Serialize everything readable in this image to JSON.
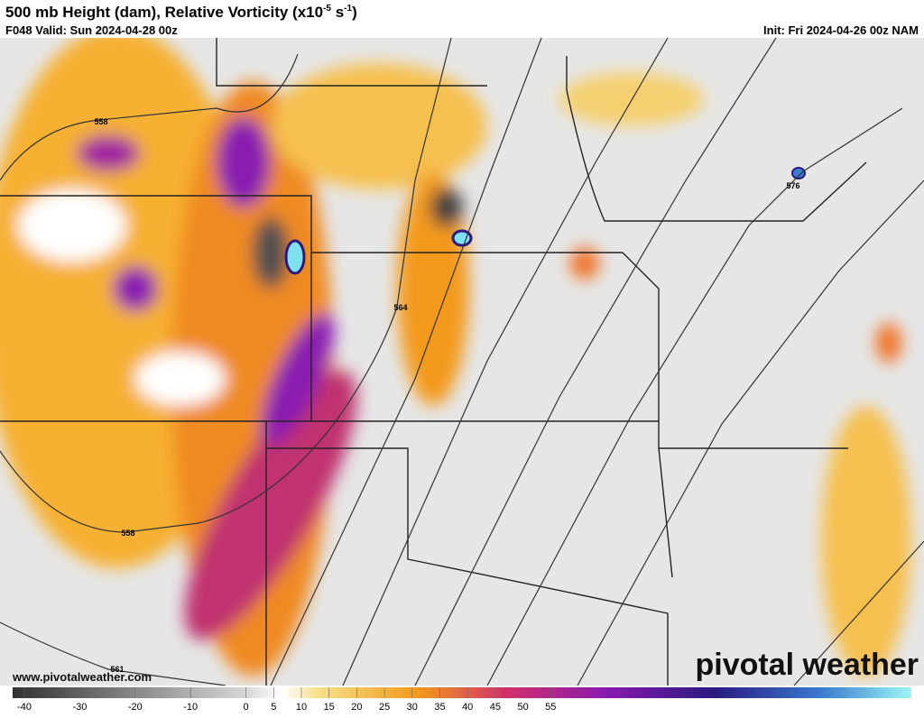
{
  "header": {
    "title": "500 mb Height (dam), Relative Vorticity (x10",
    "title_exp": "-5",
    "title_unit": " s",
    "title_unit_exp": "-1",
    "title_close": ")",
    "valid": "F048 Valid: Sun 2024-04-28 00z",
    "init": "Init: Fri 2024-04-26 00z NAM"
  },
  "contour_labels": [
    "558",
    "564",
    "576",
    "558",
    "561"
  ],
  "watermark": "pivotal weather",
  "url": "www.pivotalweather.com",
  "colorbar": {
    "ticks": [
      -40,
      -30,
      -20,
      -10,
      0,
      5,
      10,
      15,
      20,
      25,
      30,
      35,
      40,
      45,
      50,
      55
    ]
  }
}
